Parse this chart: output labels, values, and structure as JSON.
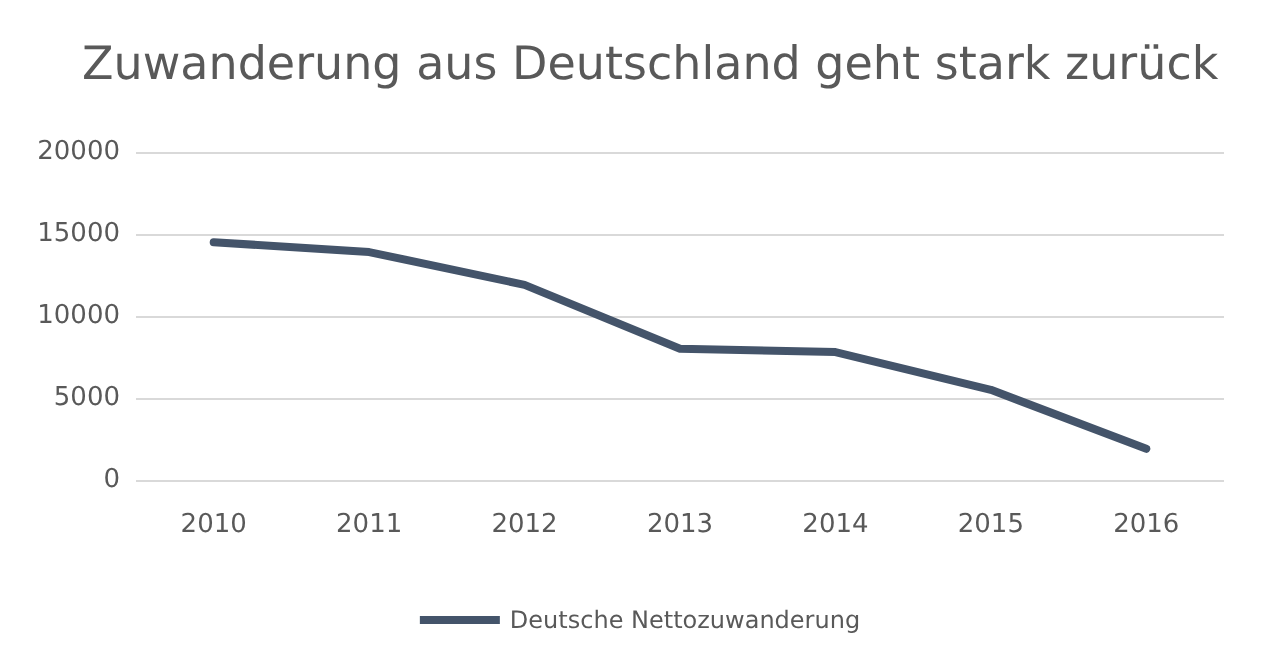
{
  "chart_data": {
    "type": "line",
    "title": "Zuwanderung aus Deutschland geht stark zurück",
    "categories": [
      "2010",
      "2011",
      "2012",
      "2013",
      "2014",
      "2015",
      "2016"
    ],
    "series": [
      {
        "name": "Deutsche Nettozuwanderung",
        "color": "#44546a",
        "values": [
          14500,
          13900,
          11900,
          8000,
          7800,
          5500,
          1900
        ]
      }
    ],
    "ylim": [
      0,
      20000
    ],
    "yticks": [
      0,
      5000,
      10000,
      15000,
      20000
    ],
    "grid": "y",
    "legend": "bottom",
    "marker": "none",
    "line_style": "solid"
  }
}
